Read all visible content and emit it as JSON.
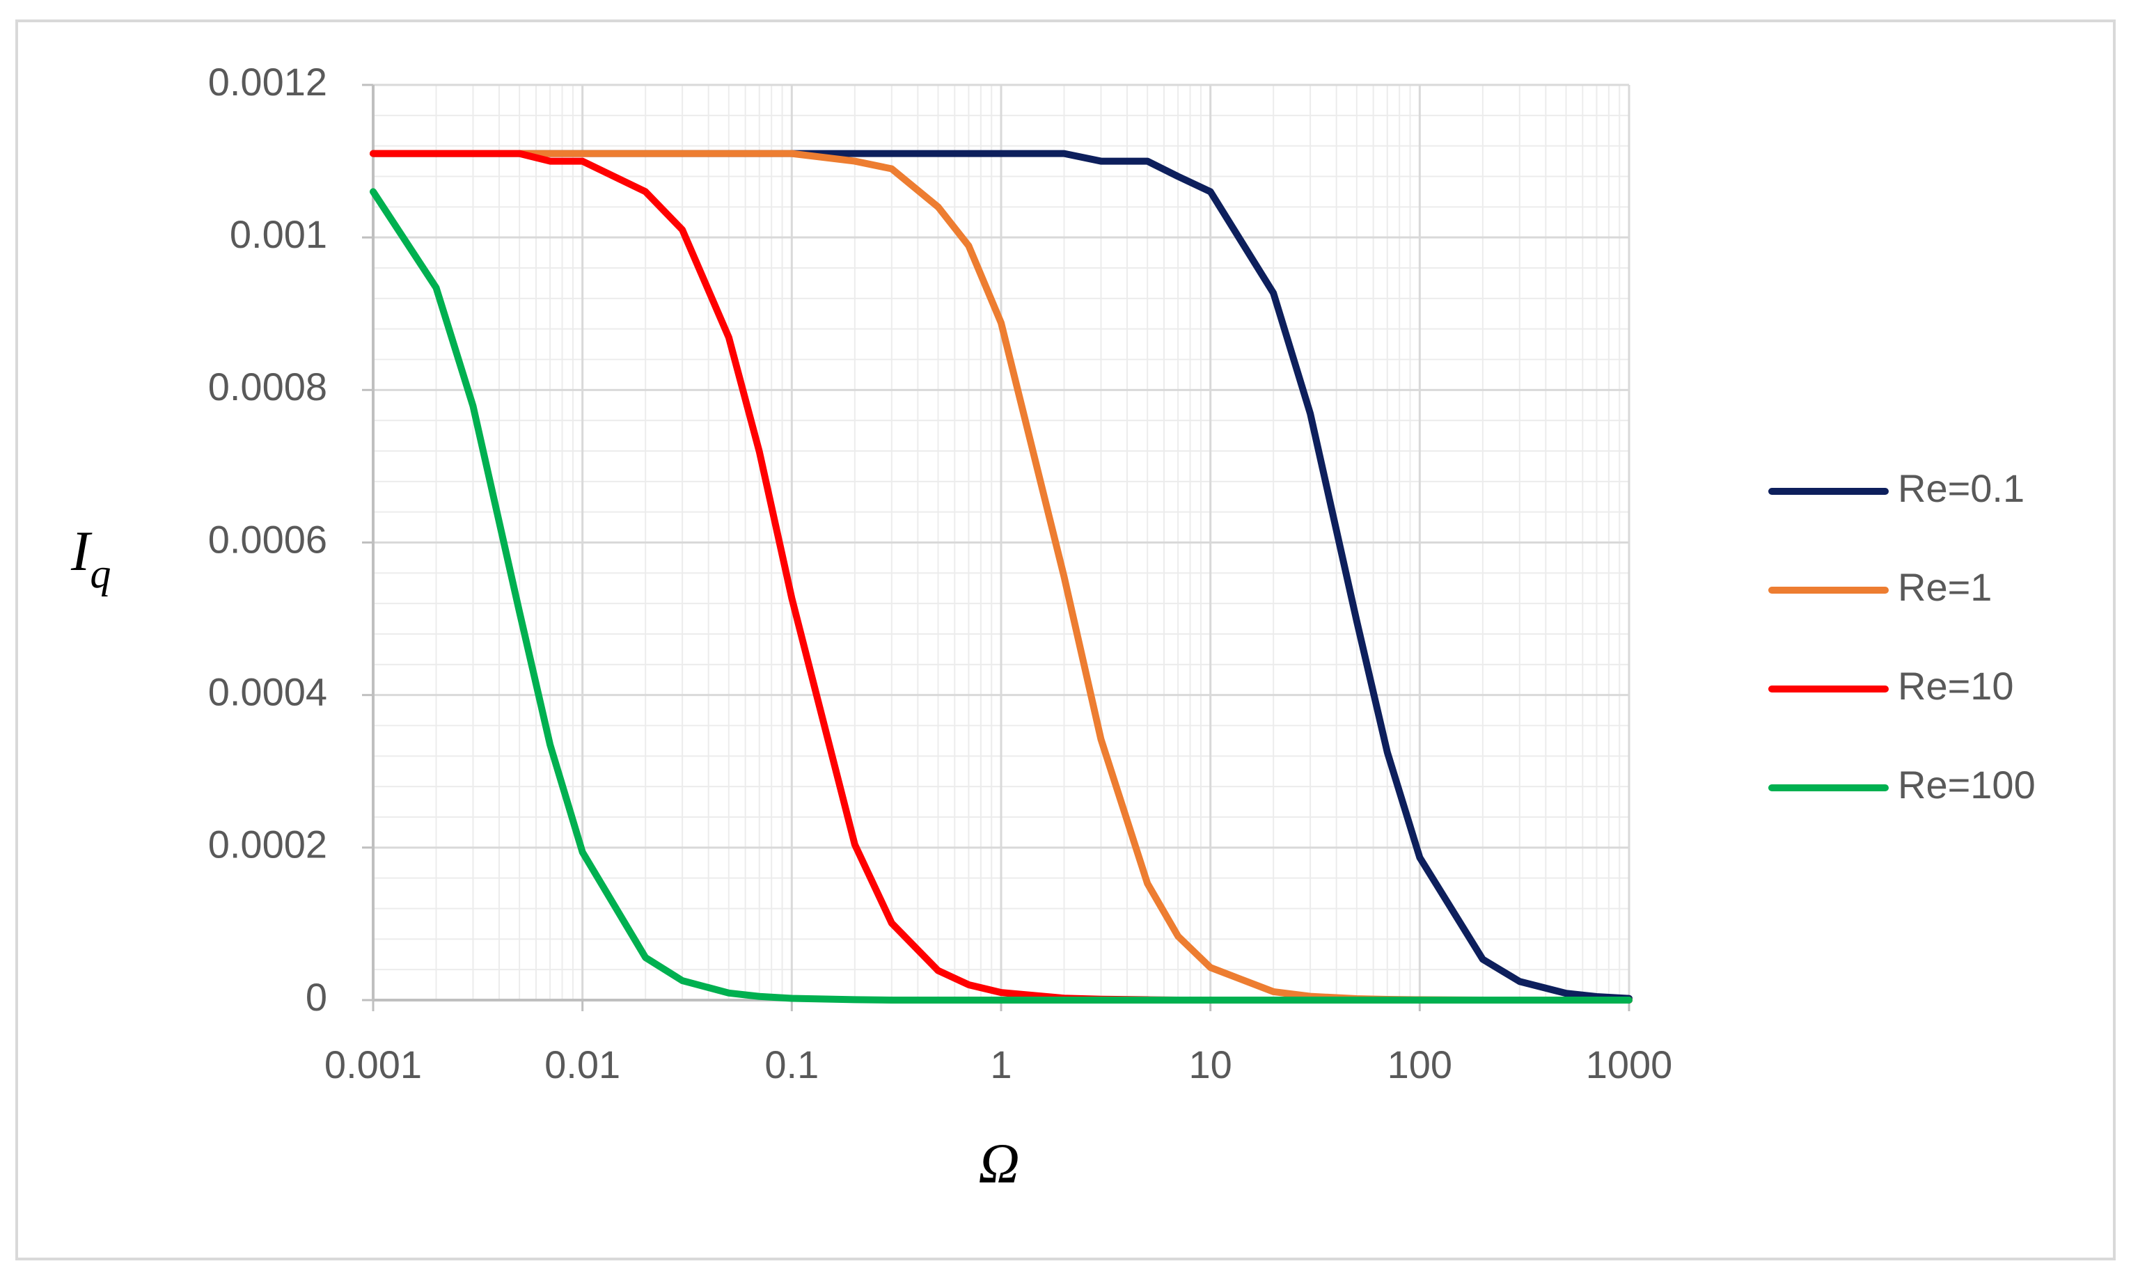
{
  "chart_data": {
    "type": "line",
    "xlabel": "Ω",
    "ylabel": "I",
    "ylabel_subscript": "q",
    "x": [
      0.001,
      0.002,
      0.003,
      0.005,
      0.007,
      0.01,
      0.02,
      0.03,
      0.05,
      0.07,
      0.1,
      0.2,
      0.3,
      0.5,
      0.7,
      1,
      2,
      3,
      5,
      7,
      10,
      20,
      30,
      50,
      70,
      100,
      200,
      300,
      500,
      700,
      1000
    ],
    "series": [
      {
        "name": "Re=0.1",
        "color": "#0d1f5c",
        "values": [
          0.00111,
          0.00111,
          0.00111,
          0.00111,
          0.00111,
          0.00111,
          0.00111,
          0.00111,
          0.00111,
          0.00111,
          0.00111,
          0.00111,
          0.00111,
          0.00111,
          0.00111,
          0.00111,
          0.00111,
          0.0011,
          0.0011,
          0.00108,
          0.00106,
          0.000927,
          0.000769,
          0.000497,
          0.000325,
          0.000187,
          5.35e-05,
          2.44e-05,
          8.9e-06,
          4.6e-06,
          2.2e-06
        ]
      },
      {
        "name": "Re=1",
        "color": "#ed7d31",
        "values": [
          0.00111,
          0.00111,
          0.00111,
          0.00111,
          0.00111,
          0.00111,
          0.00111,
          0.00111,
          0.00111,
          0.00111,
          0.00111,
          0.0011,
          0.00109,
          0.00104,
          0.000989,
          0.000888,
          0.000555,
          0.000342,
          0.000153,
          8.38e-05,
          4.27e-05,
          1.1e-05,
          4.9e-06,
          1.8e-06,
          9e-07,
          4e-07,
          0,
          0,
          0,
          0,
          0
        ]
      },
      {
        "name": "Re=10",
        "color": "#ff0000",
        "values": [
          0.00111,
          0.00111,
          0.00111,
          0.00111,
          0.0011,
          0.0011,
          0.00106,
          0.00101,
          0.000869,
          0.000719,
          0.000527,
          0.000204,
          0.000101,
          3.87e-05,
          2.01e-05,
          9.9e-06,
          2.5e-06,
          1.1e-06,
          4e-07,
          0,
          0,
          0,
          0,
          0,
          0,
          0,
          0,
          0,
          0,
          0,
          0
        ]
      },
      {
        "name": "Re=100",
        "color": "#00b050",
        "values": [
          0.00106,
          0.000934,
          0.000779,
          0.000509,
          0.000335,
          0.000194,
          5.58e-05,
          2.55e-05,
          9.3e-06,
          4.8e-06,
          2.3e-06,
          6e-07,
          0,
          0,
          0,
          0,
          0,
          0,
          0,
          0,
          0,
          0,
          0,
          0,
          0,
          0,
          0,
          0,
          0,
          0,
          0
        ]
      }
    ],
    "xlim": [
      0.001,
      1000
    ],
    "xticks": [
      0.001,
      0.01,
      0.1,
      1,
      10,
      100,
      1000
    ],
    "xscale": "log",
    "ylim": [
      0,
      0.0012
    ],
    "yticks": [
      0,
      0.0002,
      0.0004,
      0.0006,
      0.0008,
      0.001,
      0.0012
    ],
    "grid": true,
    "minor_grid": true,
    "legend": "right"
  }
}
